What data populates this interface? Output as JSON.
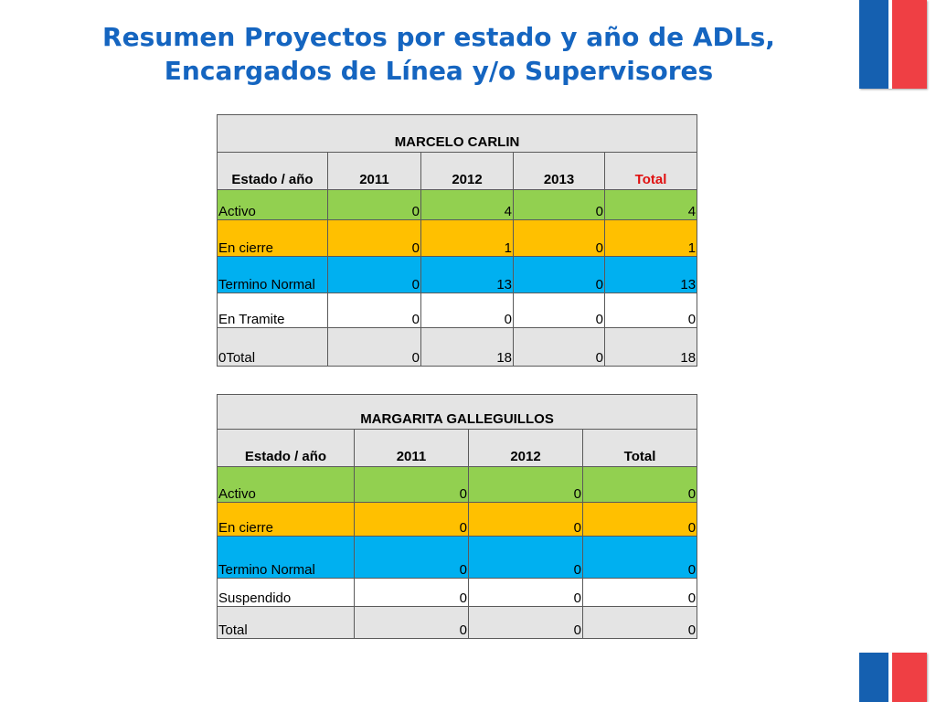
{
  "title": {
    "line1": "Resumen Proyectos por estado y año de ADLs,",
    "line2": "Encargados de Línea y/o Supervisores"
  },
  "colors": {
    "title": "#1565c0",
    "flag_blue": "#1560b0",
    "flag_red": "#ef3f44",
    "activo": "#92d050",
    "en_cierre": "#ffc000",
    "termino_normal": "#00b0f0",
    "header_grey": "#e4e4e4",
    "total_red": "#e01010"
  },
  "table1": {
    "name": "MARCELO CARLIN",
    "headers": [
      "Estado / año",
      "2011",
      "2012",
      "2013",
      "Total"
    ],
    "rows": [
      {
        "label": "Activo",
        "values": [
          "0",
          "4",
          "0",
          "4"
        ]
      },
      {
        "label": "En cierre",
        "values": [
          "0",
          "1",
          "0",
          "1"
        ]
      },
      {
        "label": "Termino Normal",
        "values": [
          "0",
          "13",
          "0",
          "13"
        ]
      },
      {
        "label": "En Tramite",
        "values": [
          "0",
          "0",
          "0",
          "0"
        ]
      },
      {
        "label": "0Total",
        "values": [
          "0",
          "18",
          "0",
          "18"
        ]
      }
    ]
  },
  "table2": {
    "name": "MARGARITA GALLEGUILLOS",
    "headers": [
      "Estado / año",
      "2011",
      "2012",
      "Total"
    ],
    "rows": [
      {
        "label": "Activo",
        "values": [
          "0",
          "0",
          "0"
        ]
      },
      {
        "label": "En cierre",
        "values": [
          "0",
          "0",
          "0"
        ]
      },
      {
        "label": "Termino Normal",
        "values": [
          "0",
          "0",
          "0"
        ]
      },
      {
        "label": "Suspendido",
        "values": [
          "0",
          "0",
          "0"
        ]
      },
      {
        "label": "Total",
        "values": [
          "0",
          "0",
          "0"
        ]
      }
    ]
  }
}
